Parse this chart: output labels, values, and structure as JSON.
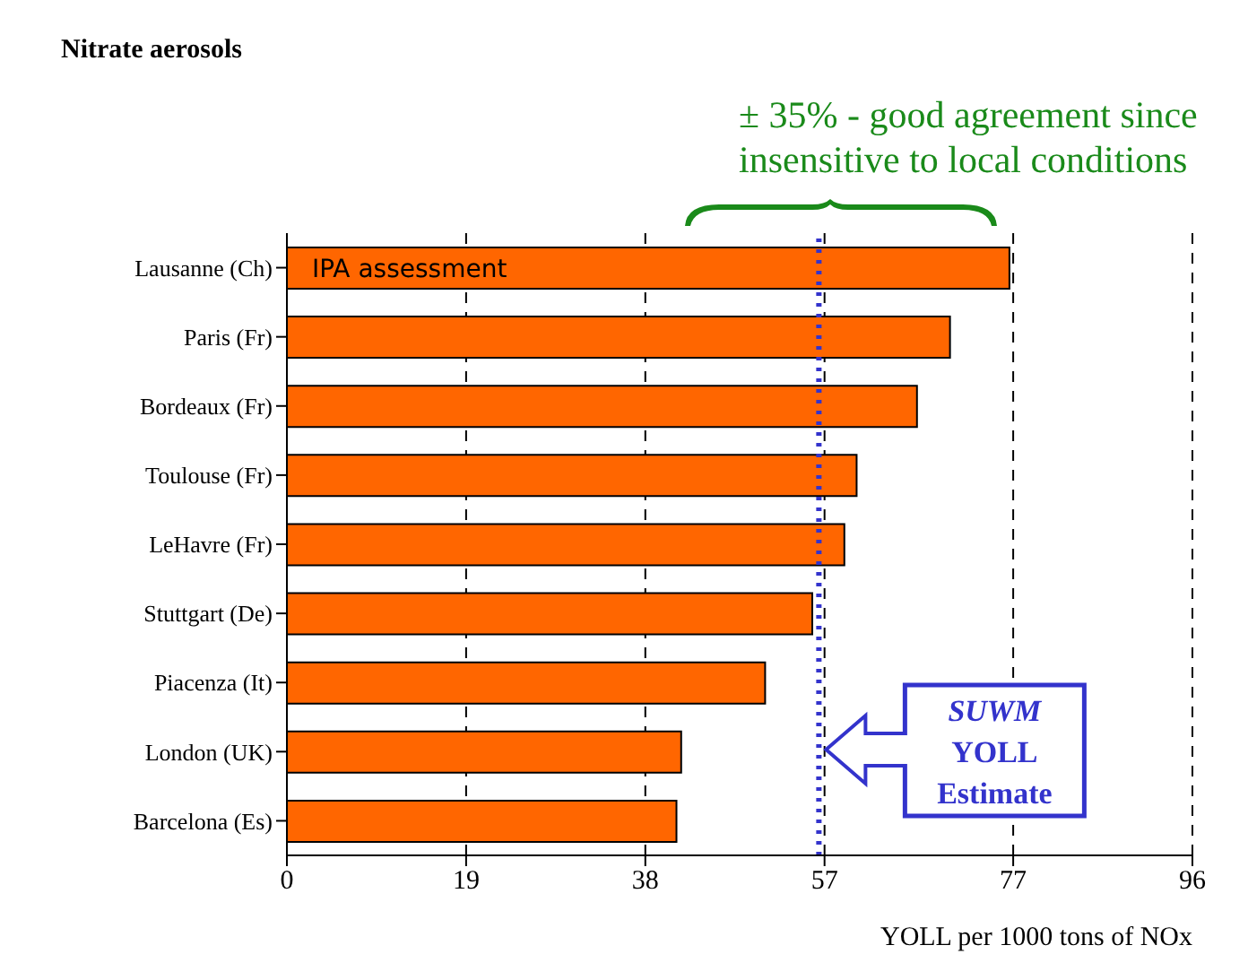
{
  "chart_data": {
    "type": "bar",
    "orientation": "horizontal",
    "title": "Nitrate aerosols",
    "xlabel": "YOLL per 1000 tons of NOx",
    "categories": [
      "Lausanne (Ch)",
      "Paris (Fr)",
      "Bordeaux (Fr)",
      "Toulouse (Fr)",
      "LeHavre (Fr)",
      "Stuttgart (De)",
      "Piacenza (It)",
      "London (UK)",
      "Barcelona (Es)"
    ],
    "values": [
      76.6,
      70.3,
      66.8,
      60.4,
      59.1,
      55.7,
      50.7,
      41.8,
      41.3
    ],
    "color": "#ff6600",
    "xlim": [
      0,
      96
    ],
    "xticks": [
      0,
      19,
      38,
      57,
      77,
      96
    ],
    "grid": "x",
    "ref_lines": [
      {
        "axis": "x",
        "value": 56.4,
        "label": "SUWM YOLL Estimate",
        "color": "#3333cc",
        "line_style": "dotted"
      }
    ],
    "annotations": [
      {
        "text": "IPA assessment",
        "y": "Lausanne (Ch)"
      },
      "± 35% - good agreement since insensitive to local conditions"
    ]
  }
}
